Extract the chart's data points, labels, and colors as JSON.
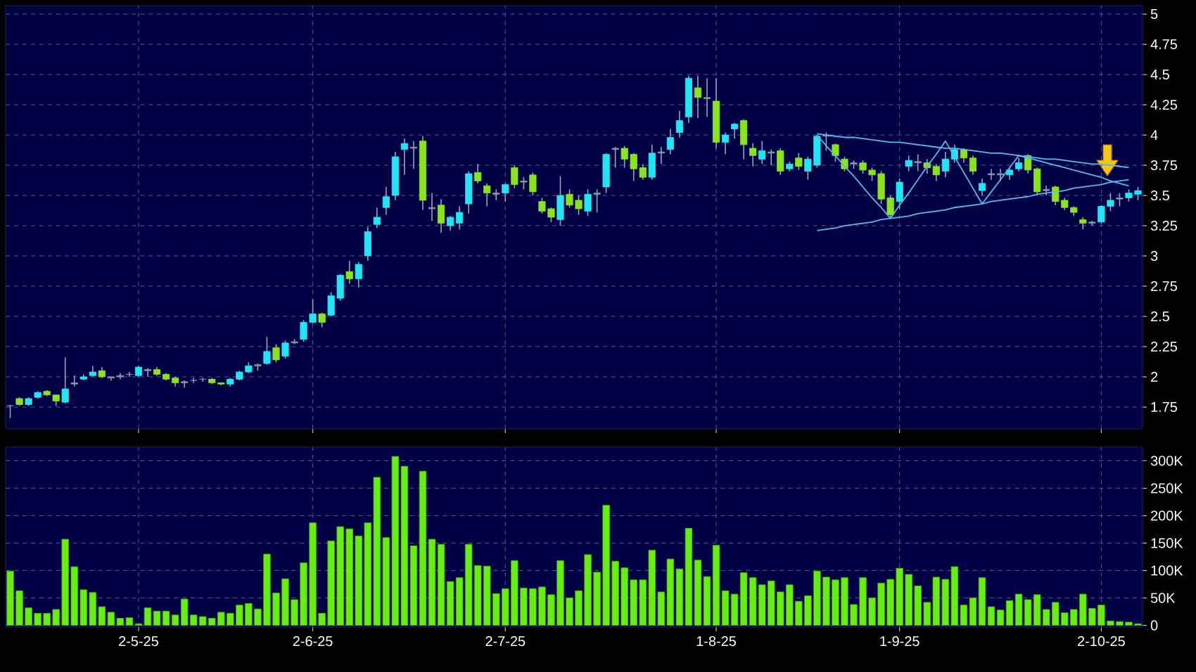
{
  "chart_data": [
    {
      "type": "candlestick",
      "categories": [
        null,
        null,
        null,
        null,
        null,
        null,
        null,
        null,
        null,
        null,
        null,
        null,
        null,
        null,
        null,
        null,
        null,
        null,
        null,
        null,
        null,
        null,
        null,
        null,
        null,
        null,
        null,
        null,
        null,
        null,
        null,
        null,
        null,
        null,
        null,
        null,
        null,
        null,
        null,
        null,
        null,
        null,
        null,
        null,
        null,
        null,
        null,
        null,
        null,
        null,
        null,
        null,
        null,
        null,
        null,
        null,
        null,
        null,
        null,
        null,
        null,
        null,
        null,
        null,
        null,
        null,
        null,
        null,
        null,
        null,
        null,
        null,
        null,
        null,
        null,
        null,
        null,
        null,
        null,
        null,
        null,
        null,
        null,
        null,
        null,
        null,
        null,
        null,
        null,
        null,
        null,
        null,
        null,
        null,
        null,
        null,
        null,
        null,
        null,
        null,
        null,
        null,
        null,
        null,
        null,
        null,
        null,
        null,
        null,
        null,
        null,
        null,
        null,
        null,
        null,
        null,
        null,
        null,
        null,
        null,
        null,
        null,
        null,
        null
      ],
      "ohlc": [
        [
          1.76,
          1.77,
          1.66,
          1.76
        ],
        [
          1.82,
          1.83,
          1.76,
          1.77
        ],
        [
          1.77,
          1.83,
          1.76,
          1.82
        ],
        [
          1.83,
          1.88,
          1.82,
          1.87
        ],
        [
          1.88,
          1.89,
          1.84,
          1.85
        ],
        [
          1.85,
          1.85,
          1.76,
          1.8
        ],
        [
          1.79,
          2.16,
          1.78,
          1.9
        ],
        [
          1.94,
          2.01,
          1.92,
          1.95
        ],
        [
          1.98,
          2.02,
          1.97,
          2.0
        ],
        [
          2.01,
          2.09,
          2.0,
          2.04
        ],
        [
          2.05,
          2.08,
          1.99,
          2.0
        ],
        [
          2.0,
          2.0,
          1.97,
          1.99
        ],
        [
          2.0,
          2.03,
          1.98,
          2.01
        ],
        [
          2.02,
          2.04,
          2.0,
          2.02
        ],
        [
          2.01,
          2.09,
          2.0,
          2.08
        ],
        [
          2.06,
          2.07,
          2.0,
          2.05
        ],
        [
          2.06,
          2.08,
          2.01,
          2.02
        ],
        [
          2.02,
          2.03,
          1.97,
          1.98
        ],
        [
          1.99,
          2.0,
          1.92,
          1.95
        ],
        [
          1.95,
          1.97,
          1.91,
          1.96
        ],
        [
          1.97,
          1.99,
          1.95,
          1.97
        ],
        [
          1.98,
          1.99,
          1.96,
          1.98
        ],
        [
          1.98,
          1.99,
          1.94,
          1.95
        ],
        [
          1.95,
          1.95,
          1.93,
          1.94
        ],
        [
          1.94,
          1.99,
          1.92,
          1.98
        ],
        [
          1.98,
          2.05,
          1.97,
          2.04
        ],
        [
          2.04,
          2.12,
          2.03,
          2.09
        ],
        [
          2.09,
          2.11,
          2.05,
          2.1
        ],
        [
          2.11,
          2.33,
          2.1,
          2.21
        ],
        [
          2.24,
          2.27,
          2.12,
          2.14
        ],
        [
          2.17,
          2.3,
          2.15,
          2.28
        ],
        [
          2.28,
          2.31,
          2.27,
          2.29
        ],
        [
          2.31,
          2.47,
          2.29,
          2.45
        ],
        [
          2.45,
          2.64,
          2.44,
          2.52
        ],
        [
          2.52,
          2.53,
          2.41,
          2.45
        ],
        [
          2.51,
          2.7,
          2.5,
          2.67
        ],
        [
          2.65,
          2.85,
          2.63,
          2.84
        ],
        [
          2.87,
          2.96,
          2.77,
          2.81
        ],
        [
          2.81,
          2.95,
          2.74,
          2.93
        ],
        [
          3.0,
          3.24,
          2.96,
          3.2
        ],
        [
          3.26,
          3.4,
          3.23,
          3.32
        ],
        [
          3.4,
          3.57,
          3.34,
          3.49
        ],
        [
          3.5,
          3.86,
          3.46,
          3.82
        ],
        [
          3.88,
          3.97,
          3.67,
          3.93
        ],
        [
          3.9,
          3.95,
          3.72,
          3.89
        ],
        [
          3.95,
          3.99,
          3.38,
          3.46
        ],
        [
          3.4,
          3.52,
          3.29,
          3.39
        ],
        [
          3.42,
          3.47,
          3.19,
          3.27
        ],
        [
          3.25,
          3.33,
          3.21,
          3.32
        ],
        [
          3.27,
          3.41,
          3.22,
          3.36
        ],
        [
          3.43,
          3.7,
          3.35,
          3.68
        ],
        [
          3.69,
          3.76,
          3.6,
          3.62
        ],
        [
          3.58,
          3.6,
          3.41,
          3.52
        ],
        [
          3.52,
          3.55,
          3.46,
          3.51
        ],
        [
          3.52,
          3.6,
          3.45,
          3.59
        ],
        [
          3.73,
          3.75,
          3.56,
          3.59
        ],
        [
          3.61,
          3.65,
          3.55,
          3.62
        ],
        [
          3.67,
          3.69,
          3.5,
          3.53
        ],
        [
          3.45,
          3.48,
          3.35,
          3.37
        ],
        [
          3.39,
          3.4,
          3.28,
          3.32
        ],
        [
          3.3,
          3.66,
          3.25,
          3.5
        ],
        [
          3.51,
          3.55,
          3.4,
          3.42
        ],
        [
          3.46,
          3.5,
          3.34,
          3.39
        ],
        [
          3.37,
          3.55,
          3.33,
          3.51
        ],
        [
          3.51,
          3.55,
          3.36,
          3.52
        ],
        [
          3.57,
          3.85,
          3.52,
          3.84
        ],
        [
          3.88,
          3.9,
          3.73,
          3.89
        ],
        [
          3.89,
          3.91,
          3.73,
          3.8
        ],
        [
          3.84,
          3.85,
          3.62,
          3.72
        ],
        [
          3.73,
          3.76,
          3.63,
          3.65
        ],
        [
          3.65,
          3.92,
          3.63,
          3.85
        ],
        [
          3.85,
          3.9,
          3.76,
          3.86
        ],
        [
          3.88,
          4.05,
          3.84,
          3.98
        ],
        [
          4.02,
          4.2,
          3.98,
          4.12
        ],
        [
          4.15,
          4.49,
          4.1,
          4.47
        ],
        [
          4.39,
          4.49,
          4.14,
          4.31
        ],
        [
          4.31,
          4.47,
          4.15,
          4.3
        ],
        [
          4.28,
          4.47,
          3.89,
          3.94
        ],
        [
          3.94,
          4.02,
          3.84,
          4.0
        ],
        [
          4.05,
          4.1,
          3.97,
          4.09
        ],
        [
          4.12,
          4.13,
          3.8,
          3.92
        ],
        [
          3.89,
          3.93,
          3.74,
          3.83
        ],
        [
          3.8,
          3.95,
          3.76,
          3.87
        ],
        [
          3.86,
          3.88,
          3.75,
          3.85
        ],
        [
          3.87,
          3.89,
          3.67,
          3.7
        ],
        [
          3.72,
          3.78,
          3.7,
          3.76
        ],
        [
          3.81,
          3.85,
          3.71,
          3.74
        ],
        [
          3.7,
          3.82,
          3.63,
          3.8
        ],
        [
          3.75,
          4.0,
          3.73,
          3.99
        ],
        [
          3.99,
          4.02,
          3.87,
          4.0
        ],
        [
          3.92,
          3.93,
          3.78,
          3.83
        ],
        [
          3.8,
          3.82,
          3.7,
          3.72
        ],
        [
          3.77,
          3.79,
          3.72,
          3.76
        ],
        [
          3.77,
          3.79,
          3.68,
          3.71
        ],
        [
          3.71,
          3.73,
          3.62,
          3.67
        ],
        [
          3.68,
          3.7,
          3.43,
          3.47
        ],
        [
          3.48,
          3.5,
          3.31,
          3.34
        ],
        [
          3.45,
          3.64,
          3.39,
          3.61
        ],
        [
          3.74,
          3.83,
          3.7,
          3.79
        ],
        [
          3.77,
          3.84,
          3.7,
          3.78
        ],
        [
          3.77,
          3.8,
          3.68,
          3.73
        ],
        [
          3.74,
          3.76,
          3.62,
          3.67
        ],
        [
          3.7,
          3.86,
          3.65,
          3.8
        ],
        [
          3.8,
          3.92,
          3.77,
          3.88
        ],
        [
          3.88,
          3.89,
          3.77,
          3.81
        ],
        [
          3.81,
          3.83,
          3.67,
          3.7
        ],
        [
          3.54,
          3.64,
          3.5,
          3.6
        ],
        [
          3.67,
          3.72,
          3.63,
          3.68
        ],
        [
          3.68,
          3.72,
          3.62,
          3.67
        ],
        [
          3.67,
          3.73,
          3.63,
          3.71
        ],
        [
          3.72,
          3.81,
          3.7,
          3.77
        ],
        [
          3.83,
          3.84,
          3.68,
          3.71
        ],
        [
          3.72,
          3.73,
          3.5,
          3.53
        ],
        [
          3.54,
          3.58,
          3.5,
          3.55
        ],
        [
          3.57,
          3.58,
          3.42,
          3.45
        ],
        [
          3.46,
          3.48,
          3.38,
          3.4
        ],
        [
          3.4,
          3.41,
          3.33,
          3.36
        ],
        [
          3.3,
          3.32,
          3.22,
          3.27
        ],
        [
          3.27,
          3.29,
          3.25,
          3.28
        ],
        [
          3.28,
          3.42,
          3.27,
          3.41
        ],
        [
          3.41,
          3.52,
          3.37,
          3.46
        ],
        [
          3.47,
          3.52,
          3.41,
          3.48
        ],
        [
          3.48,
          3.55,
          3.45,
          3.52
        ],
        [
          3.51,
          3.57,
          3.46,
          3.54
        ]
      ],
      "colors": [
        "#8899aa",
        "#88e41c",
        "#22e4f4",
        "#22e4f4",
        "#88e41c",
        "#88e41c",
        "#22e4f4",
        "#8899aa",
        "#22e4f4",
        "#22e4f4",
        "#88e41c",
        "#8899aa",
        "#8899aa",
        "#8899aa",
        "#22e4f4",
        "#8899aa",
        "#88e41c",
        "#88e41c",
        "#88e41c",
        "#8899aa",
        "#8899aa",
        "#8899aa",
        "#88e41c",
        "#88e41c",
        "#22e4f4",
        "#22e4f4",
        "#22e4f4",
        "#8899aa",
        "#22e4f4",
        "#88e41c",
        "#22e4f4",
        "#8899aa",
        "#22e4f4",
        "#22e4f4",
        "#88e41c",
        "#22e4f4",
        "#22e4f4",
        "#88e41c",
        "#22e4f4",
        "#22e4f4",
        "#22e4f4",
        "#22e4f4",
        "#22e4f4",
        "#22e4f4",
        "#8899aa",
        "#88e41c",
        "#8899aa",
        "#88e41c",
        "#22e4f4",
        "#22e4f4",
        "#22e4f4",
        "#88e41c",
        "#88e41c",
        "#8899aa",
        "#22e4f4",
        "#88e41c",
        "#8899aa",
        "#88e41c",
        "#88e41c",
        "#88e41c",
        "#22e4f4",
        "#88e41c",
        "#88e41c",
        "#22e4f4",
        "#8899aa",
        "#22e4f4",
        "#8899aa",
        "#88e41c",
        "#88e41c",
        "#88e41c",
        "#22e4f4",
        "#8899aa",
        "#22e4f4",
        "#22e4f4",
        "#22e4f4",
        "#88e41c",
        "#8899aa",
        "#88e41c",
        "#22e4f4",
        "#22e4f4",
        "#88e41c",
        "#88e41c",
        "#22e4f4",
        "#8899aa",
        "#88e41c",
        "#22e4f4",
        "#88e41c",
        "#22e4f4",
        "#22e4f4",
        "#8899aa",
        "#88e41c",
        "#88e41c",
        "#8899aa",
        "#88e41c",
        "#88e41c",
        "#88e41c",
        "#88e41c",
        "#22e4f4",
        "#22e4f4",
        "#8899aa",
        "#88e41c",
        "#88e41c",
        "#22e4f4",
        "#22e4f4",
        "#88e41c",
        "#88e41c",
        "#22e4f4",
        "#8899aa",
        "#8899aa",
        "#22e4f4",
        "#22e4f4",
        "#88e41c",
        "#88e41c",
        "#8899aa",
        "#88e41c",
        "#88e41c",
        "#88e41c",
        "#88e41c",
        "#8899aa",
        "#22e4f4",
        "#22e4f4",
        "#8899aa",
        "#22e4f4",
        "#22e4f4"
      ],
      "series": [
        {
          "type": "line",
          "color": "#55bbee",
          "values": [
            null,
            null,
            null,
            null,
            null,
            null,
            null,
            null,
            null,
            null,
            null,
            null,
            null,
            null,
            null,
            null,
            null,
            null,
            null,
            null,
            null,
            null,
            null,
            null,
            null,
            null,
            null,
            null,
            null,
            null,
            null,
            null,
            null,
            null,
            null,
            null,
            null,
            null,
            null,
            null,
            null,
            null,
            null,
            null,
            null,
            null,
            null,
            null,
            null,
            null,
            null,
            null,
            null,
            null,
            null,
            null,
            null,
            null,
            null,
            null,
            null,
            null,
            null,
            null,
            null,
            null,
            null,
            null,
            null,
            null,
            null,
            null,
            null,
            null,
            null,
            null,
            null,
            null,
            null,
            null,
            null,
            null,
            null,
            null,
            null,
            null,
            null,
            null,
            4.01,
            4.0,
            3.99,
            3.98,
            3.98,
            3.97,
            3.96,
            3.95,
            3.94,
            3.94,
            3.93,
            3.92,
            3.91,
            3.9,
            3.89,
            3.89,
            3.88,
            3.87,
            3.86,
            3.85,
            3.85,
            3.84,
            3.83,
            3.82,
            3.81,
            3.8,
            3.8,
            3.79,
            3.78,
            3.77,
            3.76,
            3.76,
            3.75,
            3.74,
            3.73,
            null
          ]
        },
        {
          "type": "line",
          "color": "#55bbee",
          "values": [
            null,
            null,
            null,
            null,
            null,
            null,
            null,
            null,
            null,
            null,
            null,
            null,
            null,
            null,
            null,
            null,
            null,
            null,
            null,
            null,
            null,
            null,
            null,
            null,
            null,
            null,
            null,
            null,
            null,
            null,
            null,
            null,
            null,
            null,
            null,
            null,
            null,
            null,
            null,
            null,
            null,
            null,
            null,
            null,
            null,
            null,
            null,
            null,
            null,
            null,
            null,
            null,
            null,
            null,
            null,
            null,
            null,
            null,
            null,
            null,
            null,
            null,
            null,
            null,
            null,
            null,
            null,
            null,
            null,
            null,
            null,
            null,
            null,
            null,
            null,
            null,
            null,
            null,
            null,
            null,
            null,
            null,
            null,
            null,
            null,
            null,
            null,
            null,
            3.21,
            3.22,
            3.23,
            3.25,
            3.26,
            3.27,
            3.28,
            3.3,
            3.31,
            3.32,
            3.33,
            3.35,
            3.36,
            3.37,
            3.38,
            3.4,
            3.41,
            3.42,
            3.43,
            3.45,
            3.46,
            3.47,
            3.48,
            3.49,
            3.51,
            3.52,
            3.53,
            3.54,
            3.56,
            3.57,
            3.58,
            3.59,
            3.61,
            3.62,
            3.63,
            null
          ]
        },
        {
          "type": "line",
          "color": "#55bbee",
          "values": [
            null,
            null,
            null,
            null,
            null,
            null,
            null,
            null,
            null,
            null,
            null,
            null,
            null,
            null,
            null,
            null,
            null,
            null,
            null,
            null,
            null,
            null,
            null,
            null,
            null,
            null,
            null,
            null,
            null,
            null,
            null,
            null,
            null,
            null,
            null,
            null,
            null,
            null,
            null,
            null,
            null,
            null,
            null,
            null,
            null,
            null,
            null,
            null,
            null,
            null,
            null,
            null,
            null,
            null,
            null,
            null,
            null,
            null,
            null,
            null,
            null,
            null,
            null,
            null,
            null,
            null,
            null,
            null,
            null,
            null,
            null,
            null,
            null,
            null,
            null,
            null,
            null,
            null,
            null,
            null,
            null,
            null,
            null,
            null,
            null,
            null,
            null,
            null,
            4.0,
            3.91,
            3.83,
            3.74,
            3.66,
            3.57,
            3.48,
            3.4,
            3.31,
            3.42,
            3.52,
            3.63,
            3.74,
            3.84,
            3.95,
            3.82,
            3.69,
            3.56,
            3.43,
            3.53,
            3.63,
            3.73,
            3.83,
            3.81,
            3.79,
            3.77,
            3.75,
            3.73,
            3.71,
            3.69,
            3.67,
            3.65,
            3.62,
            3.6,
            3.58,
            null
          ]
        }
      ],
      "ylim": [
        1.57,
        5.07
      ],
      "yticks": [
        1.75,
        2,
        2.25,
        2.5,
        2.75,
        3,
        3.25,
        3.5,
        3.75,
        4,
        4.25,
        4.5,
        4.75,
        5
      ],
      "grid": true
    },
    {
      "type": "bar",
      "categories": [
        null,
        null,
        null,
        null,
        null,
        null,
        null,
        null,
        null,
        null,
        null,
        null,
        null,
        null,
        "2-5-25",
        null,
        null,
        null,
        null,
        null,
        null,
        null,
        null,
        null,
        null,
        null,
        null,
        null,
        null,
        null,
        null,
        null,
        null,
        "2-6-25",
        null,
        null,
        null,
        null,
        null,
        null,
        null,
        null,
        null,
        null,
        null,
        null,
        null,
        null,
        null,
        null,
        null,
        null,
        null,
        null,
        "2-7-25",
        null,
        null,
        null,
        null,
        null,
        null,
        null,
        null,
        null,
        null,
        null,
        null,
        null,
        null,
        null,
        null,
        null,
        null,
        null,
        null,
        null,
        null,
        "1-8-25",
        null,
        null,
        null,
        null,
        null,
        null,
        null,
        null,
        null,
        null,
        null,
        null,
        null,
        null,
        null,
        null,
        null,
        null,
        null,
        "1-9-25",
        null,
        null,
        null,
        null,
        null,
        null,
        null,
        null,
        null,
        null,
        null,
        null,
        null,
        null,
        null,
        null,
        null,
        null,
        null,
        null,
        null,
        "2-10-25",
        null,
        null,
        null,
        null
      ],
      "values": [
        99,
        63,
        32,
        22,
        22,
        29,
        157,
        107,
        65,
        60,
        34,
        24,
        13,
        14,
        3,
        32,
        26,
        26,
        19,
        48,
        19,
        16,
        13,
        24,
        22,
        37,
        40,
        30,
        130,
        59,
        85,
        47,
        114,
        187,
        22,
        154,
        180,
        176,
        163,
        187,
        270,
        160,
        308,
        290,
        145,
        281,
        157,
        148,
        80,
        87,
        148,
        109,
        108,
        58,
        67,
        118,
        68,
        67,
        70,
        56,
        118,
        50,
        63,
        129,
        97,
        219,
        117,
        105,
        83,
        83,
        137,
        61,
        121,
        103,
        177,
        119,
        89,
        146,
        63,
        57,
        96,
        87,
        74,
        81,
        61,
        74,
        44,
        54,
        99,
        88,
        83,
        87,
        38,
        87,
        50,
        77,
        84,
        104,
        93,
        72,
        42,
        88,
        84,
        107,
        37,
        50,
        87,
        34,
        28,
        45,
        57,
        47,
        56,
        29,
        42,
        23,
        29,
        57,
        31,
        37,
        8,
        7,
        6,
        3
      ],
      "color": "#66ee11",
      "ylim": [
        -3,
        325
      ],
      "yticks": [
        0,
        {
          "value": 50,
          "label": "50K"
        },
        {
          "value": 100,
          "label": "100K"
        },
        {
          "value": 150,
          "label": "150K"
        },
        {
          "value": 200,
          "label": "200K"
        },
        {
          "value": 250,
          "label": "250K"
        },
        {
          "value": 300,
          "label": "300K"
        }
      ],
      "grid": true
    }
  ]
}
